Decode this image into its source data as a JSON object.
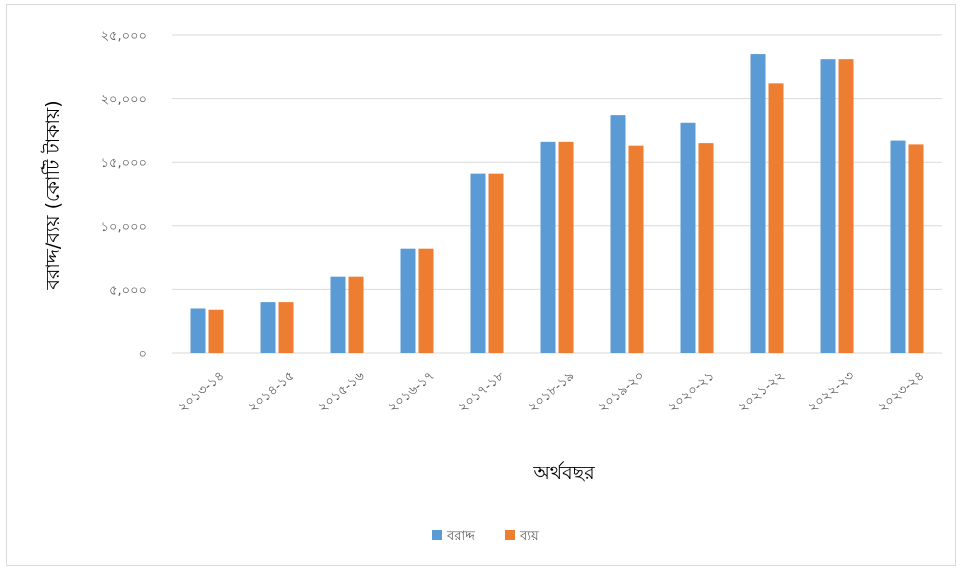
{
  "chart_data": {
    "type": "bar",
    "title": "",
    "xlabel": "অর্থবছর",
    "ylabel": "বরাদ্দ/ব্যয় (কোটি টাকায়)",
    "categories": [
      "২০১৩-১৪",
      "২০১৪-১৫",
      "২০১৫-১৬",
      "২০১৬-১৭",
      "২০১৭-১৮",
      "২০১৮-১৯",
      "২০১৯-২০",
      "২০২০-২১",
      "২০২১-২২",
      "২০২২-২৩",
      "২০২৩-২৪"
    ],
    "series": [
      {
        "name": "বরাদ্দ",
        "color": "#5b9bd5",
        "values": [
          3500,
          4000,
          6000,
          8200,
          14100,
          16600,
          18700,
          18100,
          23500,
          23100,
          16700
        ]
      },
      {
        "name": "ব্যয়",
        "color": "#ed7d31",
        "values": [
          3400,
          4000,
          6000,
          8200,
          14100,
          16600,
          16300,
          16500,
          21200,
          23100,
          16400
        ]
      }
    ],
    "ylim": [
      0,
      25000
    ],
    "yticks": [
      0,
      5000,
      10000,
      15000,
      20000,
      25000
    ],
    "ytick_labels": [
      "০",
      "৫,০০০",
      "১০,০০০",
      "১৫,০০০",
      "২০,০০০",
      "২৫,০০০"
    ],
    "grid": true,
    "legend": "bottom-center"
  }
}
